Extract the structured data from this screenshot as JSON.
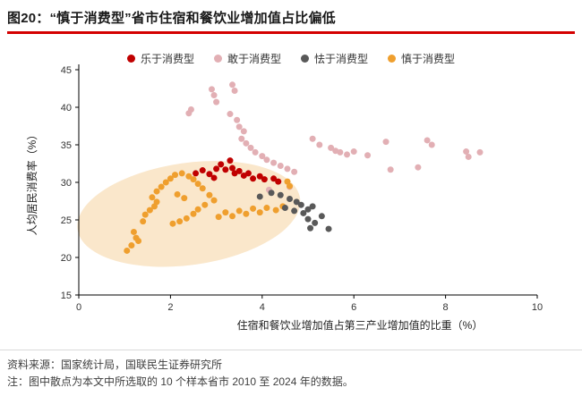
{
  "header": {
    "title": "图20：“慎于消费型”省市住宿和餐饮业增加值占比偏低",
    "accent_color": "#d40000"
  },
  "chart_data": {
    "type": "scatter",
    "title": "",
    "xlabel": "住宿和餐饮业增加值占第三产业增加值的比重（%）",
    "ylabel": "人均居民消费率（%）",
    "xlim": [
      0,
      10
    ],
    "ylim": [
      15,
      45
    ],
    "xticks": [
      0,
      2,
      4,
      6,
      8,
      10
    ],
    "yticks": [
      15,
      20,
      25,
      30,
      35,
      40,
      45
    ],
    "grid": false,
    "legend_position": "top",
    "highlight_ellipse": {
      "cx": 2.4,
      "cy": 25.8,
      "rx_data": 2.45,
      "ry_data": 6.8,
      "rotation_deg": -8,
      "color": "#fae7cb"
    },
    "series": [
      {
        "name": "乐于消费型",
        "color": "#c00000",
        "points": [
          [
            2.55,
            31.2
          ],
          [
            2.7,
            31.6
          ],
          [
            2.85,
            31.1
          ],
          [
            2.95,
            30.6
          ],
          [
            3.0,
            31.8
          ],
          [
            3.1,
            32.4
          ],
          [
            3.2,
            31.7
          ],
          [
            3.3,
            32.9
          ],
          [
            3.35,
            31.9
          ],
          [
            3.4,
            31.2
          ],
          [
            3.5,
            31.5
          ],
          [
            3.6,
            30.9
          ],
          [
            3.7,
            31.2
          ],
          [
            3.8,
            30.5
          ],
          [
            3.95,
            30.8
          ],
          [
            4.05,
            30.4
          ],
          [
            4.25,
            30.5
          ],
          [
            4.35,
            30.1
          ]
        ]
      },
      {
        "name": "敢于消费型",
        "color": "#e2afb4",
        "points": [
          [
            2.4,
            39.2
          ],
          [
            2.45,
            39.7
          ],
          [
            2.9,
            42.4
          ],
          [
            2.95,
            41.6
          ],
          [
            3.0,
            40.7
          ],
          [
            3.35,
            43.0
          ],
          [
            3.4,
            42.2
          ],
          [
            3.3,
            39.1
          ],
          [
            3.45,
            38.3
          ],
          [
            3.5,
            37.4
          ],
          [
            3.6,
            36.8
          ],
          [
            3.55,
            35.8
          ],
          [
            3.65,
            35.2
          ],
          [
            3.75,
            34.6
          ],
          [
            3.85,
            34.0
          ],
          [
            4.0,
            33.5
          ],
          [
            4.1,
            33.0
          ],
          [
            4.25,
            32.6
          ],
          [
            4.4,
            32.2
          ],
          [
            4.55,
            31.8
          ],
          [
            4.7,
            31.4
          ],
          [
            4.6,
            29.4
          ],
          [
            4.15,
            29.0
          ],
          [
            5.1,
            35.8
          ],
          [
            5.25,
            35.0
          ],
          [
            5.5,
            34.6
          ],
          [
            5.6,
            34.2
          ],
          [
            5.7,
            34.0
          ],
          [
            5.85,
            33.7
          ],
          [
            6.0,
            34.1
          ],
          [
            6.3,
            33.6
          ],
          [
            6.7,
            35.4
          ],
          [
            6.8,
            31.7
          ],
          [
            7.4,
            32.0
          ],
          [
            7.6,
            35.6
          ],
          [
            7.7,
            35.0
          ],
          [
            8.45,
            34.1
          ],
          [
            8.5,
            33.4
          ],
          [
            8.75,
            34.0
          ]
        ]
      },
      {
        "name": "怯于消费型",
        "color": "#595959",
        "points": [
          [
            3.95,
            28.1
          ],
          [
            4.2,
            28.6
          ],
          [
            4.4,
            28.3
          ],
          [
            4.6,
            27.8
          ],
          [
            4.75,
            27.4
          ],
          [
            4.85,
            27.0
          ],
          [
            4.7,
            26.2
          ],
          [
            4.9,
            25.9
          ],
          [
            5.0,
            26.4
          ],
          [
            5.1,
            26.8
          ],
          [
            5.0,
            25.1
          ],
          [
            5.15,
            24.6
          ],
          [
            5.05,
            23.9
          ],
          [
            5.3,
            25.5
          ],
          [
            5.45,
            23.8
          ],
          [
            4.5,
            26.6
          ]
        ]
      },
      {
        "name": "慎于消费型",
        "color": "#ef9f2e",
        "points": [
          [
            1.05,
            20.9
          ],
          [
            1.15,
            21.6
          ],
          [
            1.25,
            22.6
          ],
          [
            1.3,
            22.2
          ],
          [
            1.2,
            23.4
          ],
          [
            1.4,
            24.8
          ],
          [
            1.45,
            25.7
          ],
          [
            1.55,
            26.3
          ],
          [
            1.65,
            26.8
          ],
          [
            1.7,
            27.4
          ],
          [
            1.6,
            28.0
          ],
          [
            1.7,
            28.8
          ],
          [
            1.8,
            29.4
          ],
          [
            1.9,
            30.0
          ],
          [
            2.0,
            30.5
          ],
          [
            2.1,
            31.0
          ],
          [
            2.25,
            31.2
          ],
          [
            2.4,
            30.8
          ],
          [
            2.5,
            30.4
          ],
          [
            2.6,
            29.8
          ],
          [
            2.7,
            29.2
          ],
          [
            2.85,
            28.3
          ],
          [
            2.95,
            27.6
          ],
          [
            2.75,
            27.0
          ],
          [
            2.6,
            26.4
          ],
          [
            2.5,
            25.8
          ],
          [
            2.35,
            25.2
          ],
          [
            2.2,
            24.8
          ],
          [
            2.05,
            24.5
          ],
          [
            2.3,
            27.9
          ],
          [
            2.15,
            28.4
          ],
          [
            3.05,
            25.4
          ],
          [
            3.2,
            26.0
          ],
          [
            3.35,
            25.5
          ],
          [
            3.5,
            26.2
          ],
          [
            3.65,
            25.8
          ],
          [
            3.8,
            26.5
          ],
          [
            3.95,
            26.0
          ],
          [
            4.1,
            26.6
          ],
          [
            4.3,
            26.3
          ],
          [
            4.45,
            26.8
          ],
          [
            4.55,
            30.1
          ],
          [
            4.6,
            29.5
          ]
        ]
      }
    ]
  },
  "footer": {
    "source": "资料来源：国家统计局，国联民生证券研究所",
    "note": "注：图中散点为本文中所选取的 10 个样本省市 2010 至 2024 年的数据。"
  }
}
